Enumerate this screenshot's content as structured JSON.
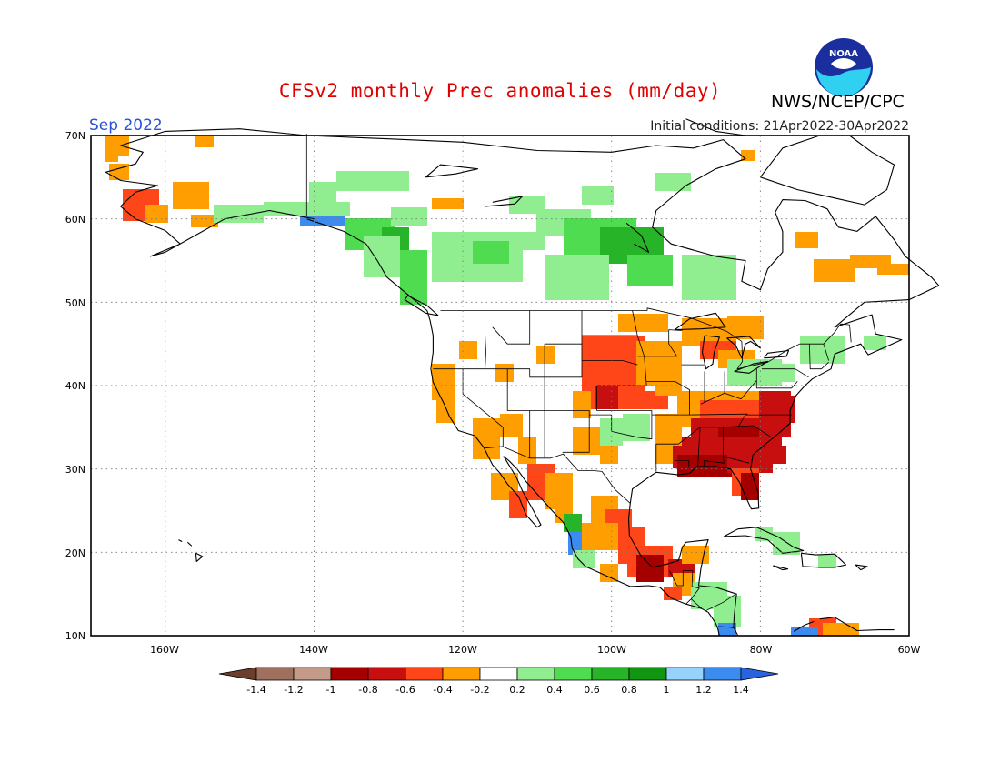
{
  "title": "CFSv2 monthly Prec anomalies (mm/day)",
  "org": "NWS/NCEP/CPC",
  "logo_text": "NOAA",
  "target_month": "Sep 2022",
  "initial_conditions": "Initial conditions: 21Apr2022-30Apr2022",
  "map": {
    "lon_range": [
      -170,
      -60
    ],
    "lat_range": [
      10,
      70
    ],
    "lon_ticks": [
      "160W",
      "140W",
      "120W",
      "100W",
      "80W",
      "60W"
    ],
    "lat_ticks": [
      "70N",
      "60N",
      "50N",
      "40N",
      "30N",
      "20N",
      "10N"
    ],
    "grid": "dotted"
  },
  "colorbar": {
    "labels": [
      "-1.4",
      "-1.2",
      "-1",
      "-0.8",
      "-0.6",
      "-0.4",
      "-0.2",
      "0.2",
      "0.4",
      "0.6",
      "0.8",
      "1",
      "1.2",
      "1.4"
    ],
    "colors": [
      "#6b3e2e",
      "#a0705f",
      "#c49a88",
      "#a50000",
      "#c80f0f",
      "#ff4618",
      "#ff9e00",
      "#ffffff",
      "#90ee90",
      "#50dc50",
      "#28b428",
      "#119611",
      "#96d2fa",
      "#3c8cf0",
      "#2864e0"
    ]
  }
}
